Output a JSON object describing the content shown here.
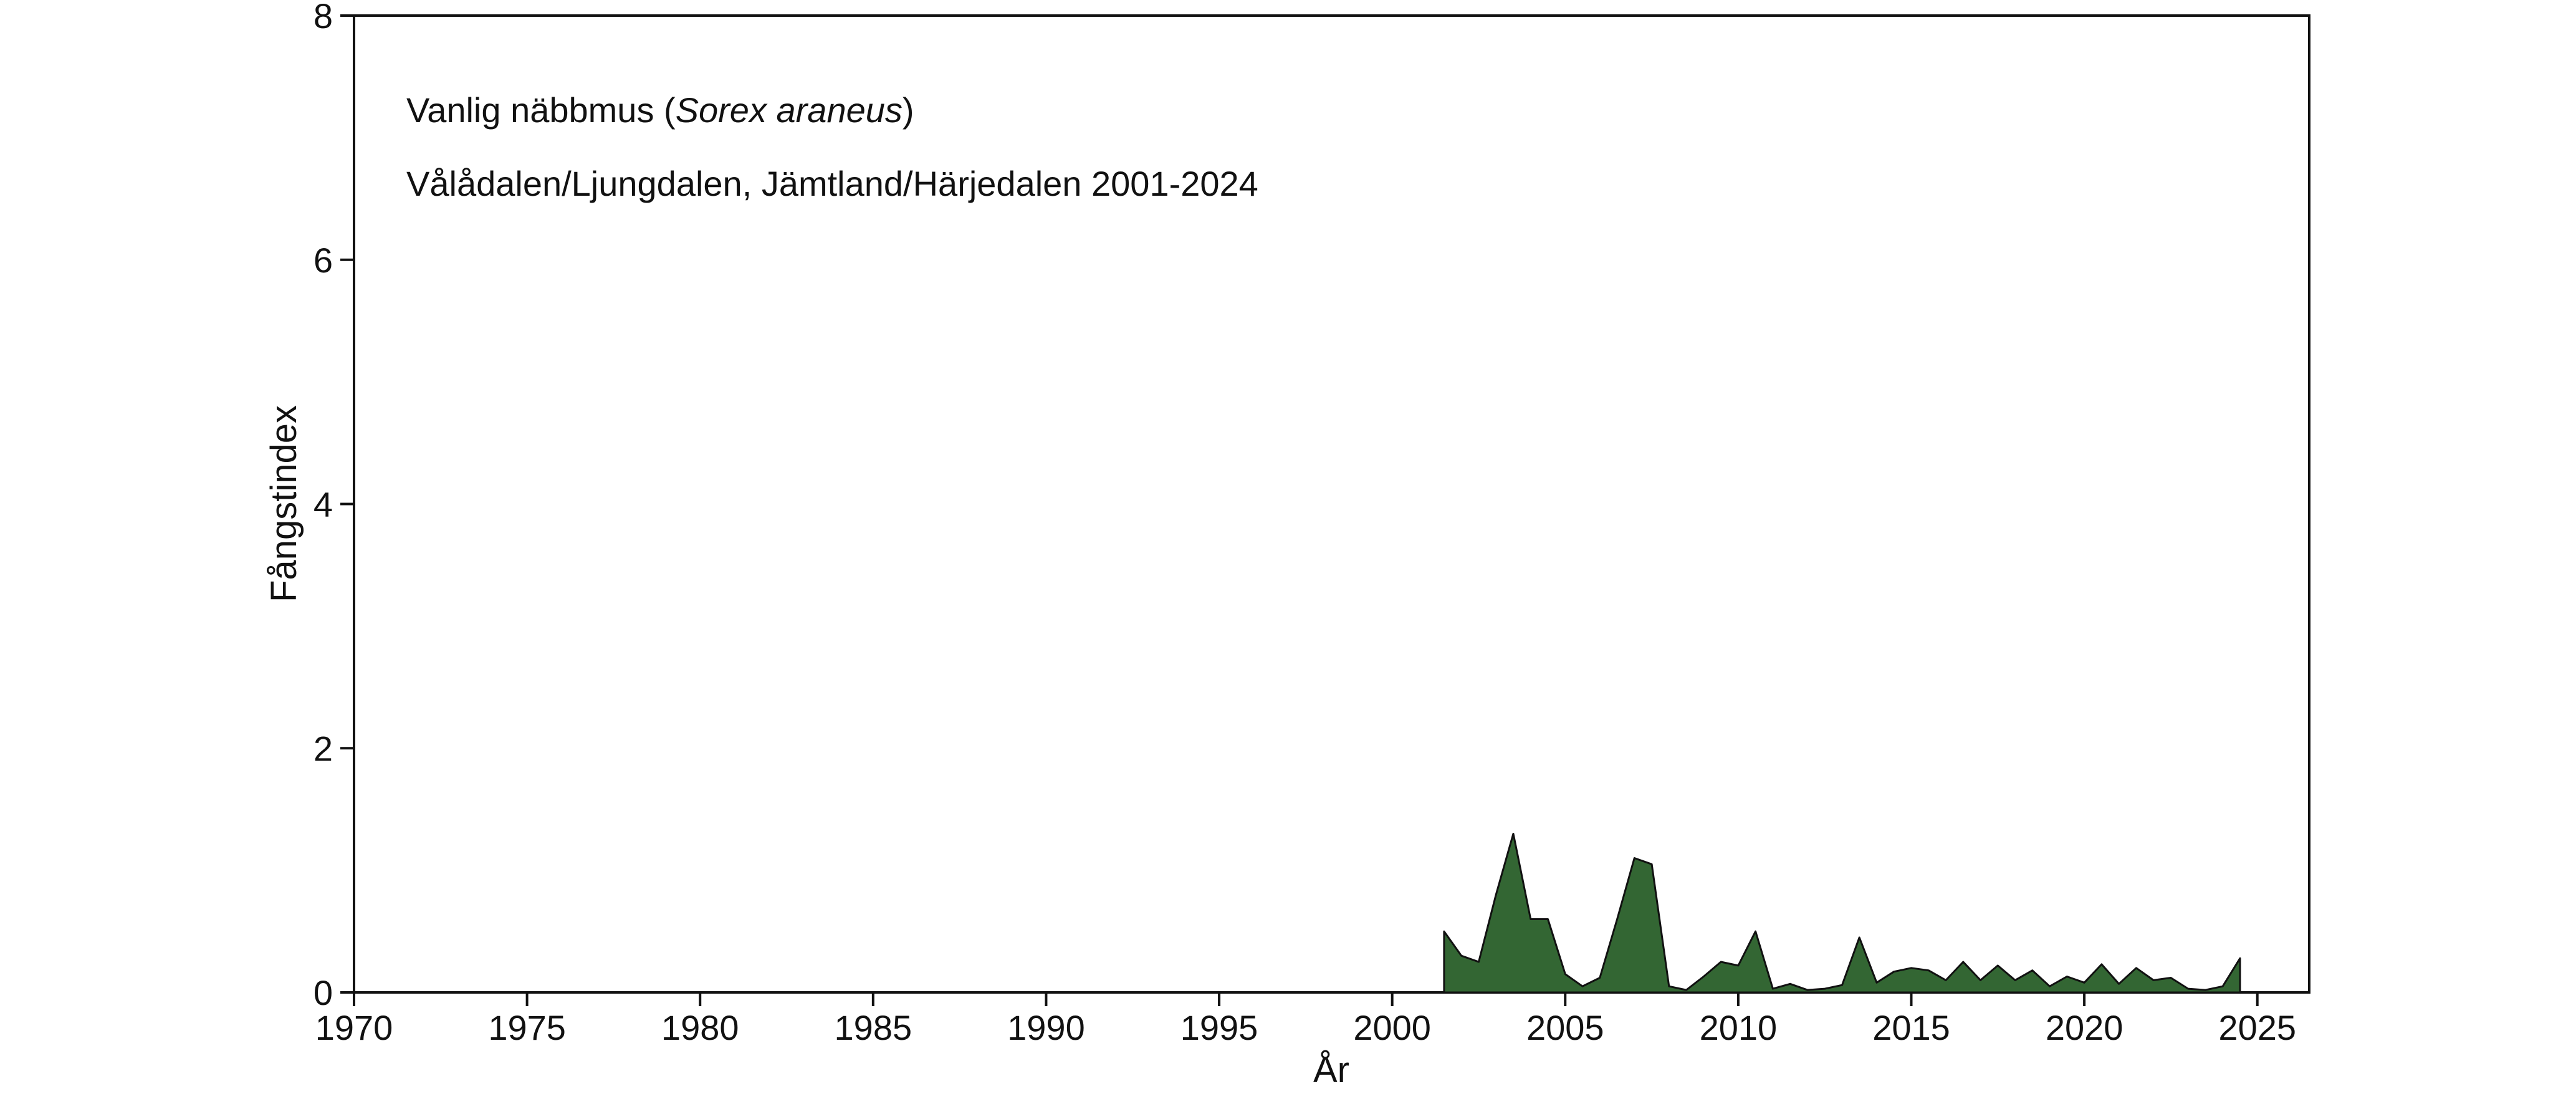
{
  "chart_data": {
    "type": "area",
    "annotation_line1_prefix": "Vanlig näbbmus (",
    "annotation_line1_species": "Sorex araneus",
    "annotation_line1_suffix": ")",
    "annotation_line2": "Vålådalen/Ljungdalen, Jämtland/Härjedalen 2001-2024",
    "xlabel": "År",
    "ylabel": "Fångstindex",
    "xlim": [
      1970,
      2026.5
    ],
    "ylim": [
      0,
      8
    ],
    "xticks": [
      "1970",
      "1975",
      "1980",
      "1985",
      "1990",
      "1995",
      "2000",
      "2005",
      "2010",
      "2015",
      "2020",
      "2025"
    ],
    "yticks": [
      "0",
      "2",
      "4",
      "6",
      "8"
    ],
    "fill_color": "#336633",
    "stroke_color": "#111111",
    "grid": false,
    "series": [
      {
        "x": [
          2001.5,
          2002,
          2002.5,
          2003,
          2003.5,
          2004,
          2004.5,
          2005,
          2005.5,
          2006,
          2006.5,
          2007,
          2007.5,
          2008,
          2008.5,
          2009,
          2009.5,
          2010,
          2010.5,
          2011,
          2011.5,
          2012,
          2012.5,
          2013,
          2013.5,
          2014,
          2014.5,
          2015,
          2015.5,
          2016,
          2016.5,
          2017,
          2017.5,
          2018,
          2018.5,
          2019,
          2019.5,
          2020,
          2020.5,
          2021,
          2021.5,
          2022,
          2022.5,
          2023,
          2023.5,
          2024,
          2024.5
        ],
        "y": [
          0.5,
          0.3,
          0.25,
          0.8,
          1.3,
          0.6,
          0.6,
          0.15,
          0.05,
          0.12,
          0.6,
          1.1,
          1.05,
          0.05,
          0.02,
          0.13,
          0.25,
          0.22,
          0.5,
          0.03,
          0.07,
          0.02,
          0.03,
          0.06,
          0.45,
          0.08,
          0.17,
          0.2,
          0.18,
          0.1,
          0.25,
          0.1,
          0.22,
          0.1,
          0.18,
          0.05,
          0.13,
          0.08,
          0.23,
          0.07,
          0.2,
          0.1,
          0.12,
          0.03,
          0.02,
          0.05,
          0.28
        ]
      }
    ]
  }
}
